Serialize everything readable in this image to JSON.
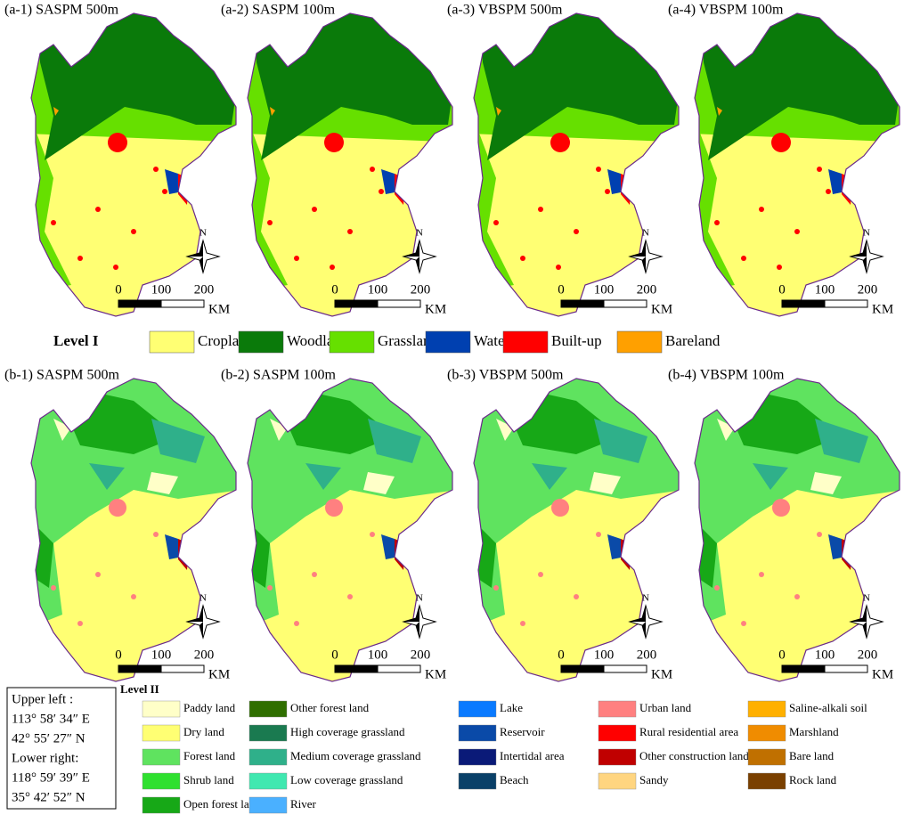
{
  "panels_a": [
    {
      "label": "(a-1) SASPM 500m"
    },
    {
      "label": "(a-2) SASPM 100m"
    },
    {
      "label": "(a-3) VBSPM 500m"
    },
    {
      "label": "(a-4) VBSPM 100m"
    }
  ],
  "panels_b": [
    {
      "label": "(b-1) SASPM 500m"
    },
    {
      "label": "(b-2) SASPM 100m"
    },
    {
      "label": "(b-3) VBSPM 500m"
    },
    {
      "label": "(b-4) VBSPM 100m"
    }
  ],
  "north": "N",
  "scale_bar": {
    "ticks": [
      "0",
      "100",
      "200"
    ],
    "unit": "KM"
  },
  "legend_level1": {
    "title": "Level I",
    "items": [
      {
        "name": "Cropland",
        "color": "#ffff73"
      },
      {
        "name": "Woodland",
        "color": "#0a7a0a"
      },
      {
        "name": "Grassland",
        "color": "#66e000"
      },
      {
        "name": "Water",
        "color": "#0040b0"
      },
      {
        "name": "Built-up",
        "color": "#ff0000"
      },
      {
        "name": "Bareland",
        "color": "#ffa000"
      }
    ]
  },
  "legend_level2": {
    "title": "Level II",
    "items": [
      {
        "name": "Paddy land",
        "color": "#ffffc8"
      },
      {
        "name": "Dry land",
        "color": "#ffff73"
      },
      {
        "name": "Forest land",
        "color": "#5fe35f"
      },
      {
        "name": "Shrub land",
        "color": "#2fe02f"
      },
      {
        "name": "Open forest land",
        "color": "#17a817"
      },
      {
        "name": "Other forest land",
        "color": "#2f6e00"
      },
      {
        "name": "High coverage grassland",
        "color": "#1a7a50"
      },
      {
        "name": "Medium coverage grassland",
        "color": "#2fb08a"
      },
      {
        "name": "Low coverage grassland",
        "color": "#40e8b0"
      },
      {
        "name": "River",
        "color": "#4ab0ff"
      },
      {
        "name": "Lake",
        "color": "#0a7aff"
      },
      {
        "name": "Reservoir",
        "color": "#0a4aa8"
      },
      {
        "name": "Intertidal area",
        "color": "#0a1a78"
      },
      {
        "name": "Beach",
        "color": "#0a4068"
      },
      {
        "name": "Urban land",
        "color": "#ff8080"
      },
      {
        "name": "Rural residential area",
        "color": "#ff0000"
      },
      {
        "name": "Other construction land",
        "color": "#c00000"
      },
      {
        "name": "Sandy",
        "color": "#ffd580"
      },
      {
        "name": "Saline-alkali soil",
        "color": "#ffb000"
      },
      {
        "name": "Marshland",
        "color": "#f08c00"
      },
      {
        "name": "Bare land",
        "color": "#c07000"
      },
      {
        "name": "Rock land",
        "color": "#7a4000"
      }
    ]
  },
  "coordinates": [
    "Upper left :",
    "113° 58′ 34″ E",
    "42° 55′ 27″ N",
    "Lower right:",
    "118° 59′ 39″ E",
    "35° 42′ 52″ N"
  ]
}
